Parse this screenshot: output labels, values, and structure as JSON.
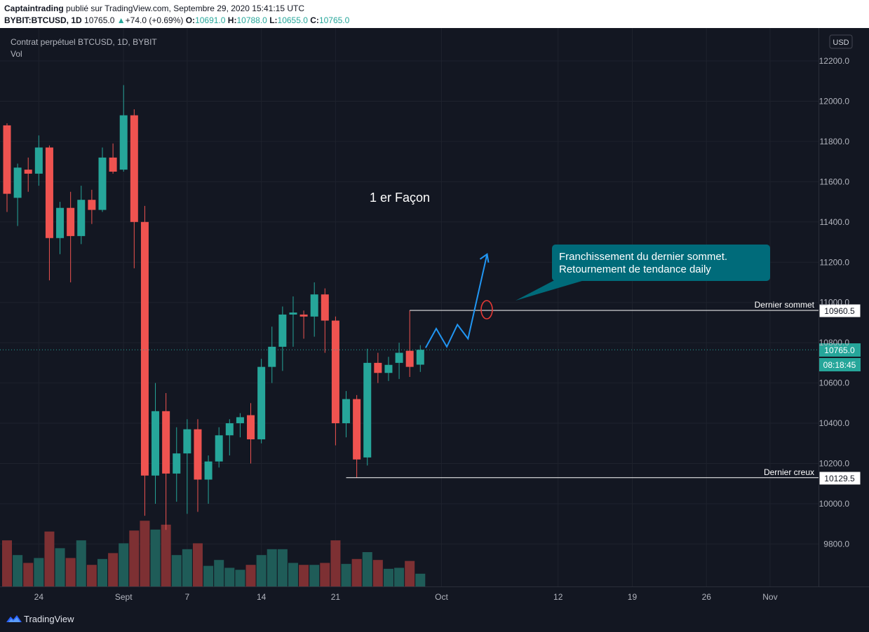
{
  "header": {
    "author": "Captaintrading",
    "published": "publié sur TradingView.com, Septembre 29, 2020 15:41:15 UTC",
    "symbol": "BYBIT:BTCUSD, 1D",
    "last": "10765.0",
    "change": "+74.0 (+0.69%)",
    "o_label": "O:",
    "o": "10691.0",
    "h_label": "H:",
    "h": "10788.0",
    "l_label": "L:",
    "l": "10655.0",
    "c_label": "C:",
    "c": "10765.0"
  },
  "chart_title": "Contrat perpétuel BTCUSD, 1D, BYBIT",
  "vol_label": "Vol",
  "currency_button": "USD",
  "footer": {
    "brand": "TradingView",
    "logo_icon": "tradingview-logo-icon"
  },
  "colors": {
    "up": "#26a69a",
    "down": "#ef5350",
    "background": "#131722",
    "projection": "#2196f3",
    "callout": "#006b7a"
  },
  "annotations": {
    "method_label": "1 er Façon",
    "callout_line1": "Franchissement du dernier sommet.",
    "callout_line2": "Retournement de tendance daily",
    "last_top_label": "Dernier sommet",
    "last_top_price": "10960.5",
    "last_low_label": "Dernier creux",
    "last_low_price": "10129.5",
    "last_price": "10765.0",
    "countdown": "08:18:45"
  },
  "chart_data": {
    "type": "candlestick",
    "title": "Contrat perpétuel BTCUSD, 1D, BYBIT",
    "y_axis": {
      "ylim": [
        9600,
        12300
      ],
      "ticks": [
        "12200.0",
        "12000.0",
        "11800.0",
        "11600.0",
        "11400.0",
        "11200.0",
        "11000.0",
        "10800.0",
        "10600.0",
        "10400.0",
        "10200.0",
        "10000.0",
        "9800.0"
      ]
    },
    "x_axis": {
      "ticks": [
        {
          "label": "24",
          "day": 3
        },
        {
          "label": "Sept",
          "day": 11
        },
        {
          "label": "7",
          "day": 17
        },
        {
          "label": "14",
          "day": 24
        },
        {
          "label": "21",
          "day": 31
        },
        {
          "label": "Oct",
          "day": 41
        },
        {
          "label": "12",
          "day": 52
        },
        {
          "label": "19",
          "day": 59
        },
        {
          "label": "26",
          "day": 66
        },
        {
          "label": "Nov",
          "day": 72
        }
      ]
    },
    "volume_scale_max": 1.0,
    "candles": [
      {
        "day": 0,
        "o": 11880,
        "h": 11890,
        "l": 11450,
        "c": 11540,
        "v": 0.47
      },
      {
        "day": 1,
        "o": 11520,
        "h": 11690,
        "l": 11380,
        "c": 11670,
        "v": 0.32
      },
      {
        "day": 2,
        "o": 11660,
        "h": 11720,
        "l": 11550,
        "c": 11640,
        "v": 0.24
      },
      {
        "day": 3,
        "o": 11640,
        "h": 11830,
        "l": 11580,
        "c": 11770,
        "v": 0.29
      },
      {
        "day": 4,
        "o": 11770,
        "h": 11780,
        "l": 11110,
        "c": 11320,
        "v": 0.56
      },
      {
        "day": 5,
        "o": 11320,
        "h": 11500,
        "l": 11240,
        "c": 11470,
        "v": 0.39
      },
      {
        "day": 6,
        "o": 11470,
        "h": 11550,
        "l": 11100,
        "c": 11330,
        "v": 0.29
      },
      {
        "day": 7,
        "o": 11330,
        "h": 11580,
        "l": 11290,
        "c": 11510,
        "v": 0.47
      },
      {
        "day": 8,
        "o": 11510,
        "h": 11560,
        "l": 11390,
        "c": 11460,
        "v": 0.22
      },
      {
        "day": 9,
        "o": 11460,
        "h": 11770,
        "l": 11450,
        "c": 11720,
        "v": 0.28
      },
      {
        "day": 10,
        "o": 11720,
        "h": 11790,
        "l": 11640,
        "c": 11650,
        "v": 0.34
      },
      {
        "day": 11,
        "o": 11660,
        "h": 12080,
        "l": 11650,
        "c": 11930,
        "v": 0.44
      },
      {
        "day": 12,
        "o": 11930,
        "h": 11960,
        "l": 11170,
        "c": 11400,
        "v": 0.57
      },
      {
        "day": 13,
        "o": 11400,
        "h": 11480,
        "l": 9940,
        "c": 10140,
        "v": 0.67
      },
      {
        "day": 14,
        "o": 10140,
        "h": 10600,
        "l": 10000,
        "c": 10460,
        "v": 0.58
      },
      {
        "day": 15,
        "o": 10460,
        "h": 10550,
        "l": 9870,
        "c": 10150,
        "v": 0.63
      },
      {
        "day": 16,
        "o": 10150,
        "h": 10380,
        "l": 10010,
        "c": 10250,
        "v": 0.32
      },
      {
        "day": 17,
        "o": 10250,
        "h": 10420,
        "l": 9950,
        "c": 10370,
        "v": 0.38
      },
      {
        "day": 18,
        "o": 10370,
        "h": 10420,
        "l": 9960,
        "c": 10120,
        "v": 0.44
      },
      {
        "day": 19,
        "o": 10120,
        "h": 10240,
        "l": 10000,
        "c": 10210,
        "v": 0.21
      },
      {
        "day": 20,
        "o": 10210,
        "h": 10380,
        "l": 10180,
        "c": 10340,
        "v": 0.27
      },
      {
        "day": 21,
        "o": 10340,
        "h": 10420,
        "l": 10240,
        "c": 10400,
        "v": 0.19
      },
      {
        "day": 22,
        "o": 10400,
        "h": 10450,
        "l": 10330,
        "c": 10430,
        "v": 0.17
      },
      {
        "day": 23,
        "o": 10440,
        "h": 10500,
        "l": 10200,
        "c": 10320,
        "v": 0.22
      },
      {
        "day": 24,
        "o": 10320,
        "h": 10720,
        "l": 10300,
        "c": 10680,
        "v": 0.32
      },
      {
        "day": 25,
        "o": 10680,
        "h": 10880,
        "l": 10600,
        "c": 10780,
        "v": 0.38
      },
      {
        "day": 26,
        "o": 10780,
        "h": 10980,
        "l": 10660,
        "c": 10940,
        "v": 0.38
      },
      {
        "day": 27,
        "o": 10940,
        "h": 11030,
        "l": 10780,
        "c": 10950,
        "v": 0.24
      },
      {
        "day": 28,
        "o": 10940,
        "h": 10960,
        "l": 10820,
        "c": 10930,
        "v": 0.22
      },
      {
        "day": 29,
        "o": 10930,
        "h": 11100,
        "l": 10830,
        "c": 11040,
        "v": 0.22
      },
      {
        "day": 30,
        "o": 11040,
        "h": 11070,
        "l": 10750,
        "c": 10910,
        "v": 0.24
      },
      {
        "day": 31,
        "o": 10910,
        "h": 10930,
        "l": 10290,
        "c": 10400,
        "v": 0.47
      },
      {
        "day": 32,
        "o": 10400,
        "h": 10560,
        "l": 10330,
        "c": 10520,
        "v": 0.23
      },
      {
        "day": 33,
        "o": 10520,
        "h": 10540,
        "l": 10130,
        "c": 10220,
        "v": 0.28
      },
      {
        "day": 34,
        "o": 10230,
        "h": 10770,
        "l": 10190,
        "c": 10700,
        "v": 0.35
      },
      {
        "day": 35,
        "o": 10700,
        "h": 10750,
        "l": 10600,
        "c": 10650,
        "v": 0.27
      },
      {
        "day": 36,
        "o": 10650,
        "h": 10730,
        "l": 10610,
        "c": 10690,
        "v": 0.18
      },
      {
        "day": 37,
        "o": 10700,
        "h": 10800,
        "l": 10620,
        "c": 10750,
        "v": 0.19
      },
      {
        "day": 38,
        "o": 10760,
        "h": 10960,
        "l": 10630,
        "c": 10680,
        "v": 0.26
      },
      {
        "day": 39,
        "o": 10691,
        "h": 10788,
        "l": 10655,
        "c": 10765,
        "v": 0.13
      }
    ],
    "levels": [
      {
        "name": "Dernier sommet",
        "price": 10960.5
      },
      {
        "name": "Dernier creux",
        "price": 10129.5
      }
    ],
    "projection_path": [
      {
        "day": 39.5,
        "price": 10775
      },
      {
        "day": 40.5,
        "price": 10870
      },
      {
        "day": 41.5,
        "price": 10780
      },
      {
        "day": 42.5,
        "price": 10890
      },
      {
        "day": 43.5,
        "price": 10820
      },
      {
        "day": 45.3,
        "price": 11240
      }
    ]
  }
}
